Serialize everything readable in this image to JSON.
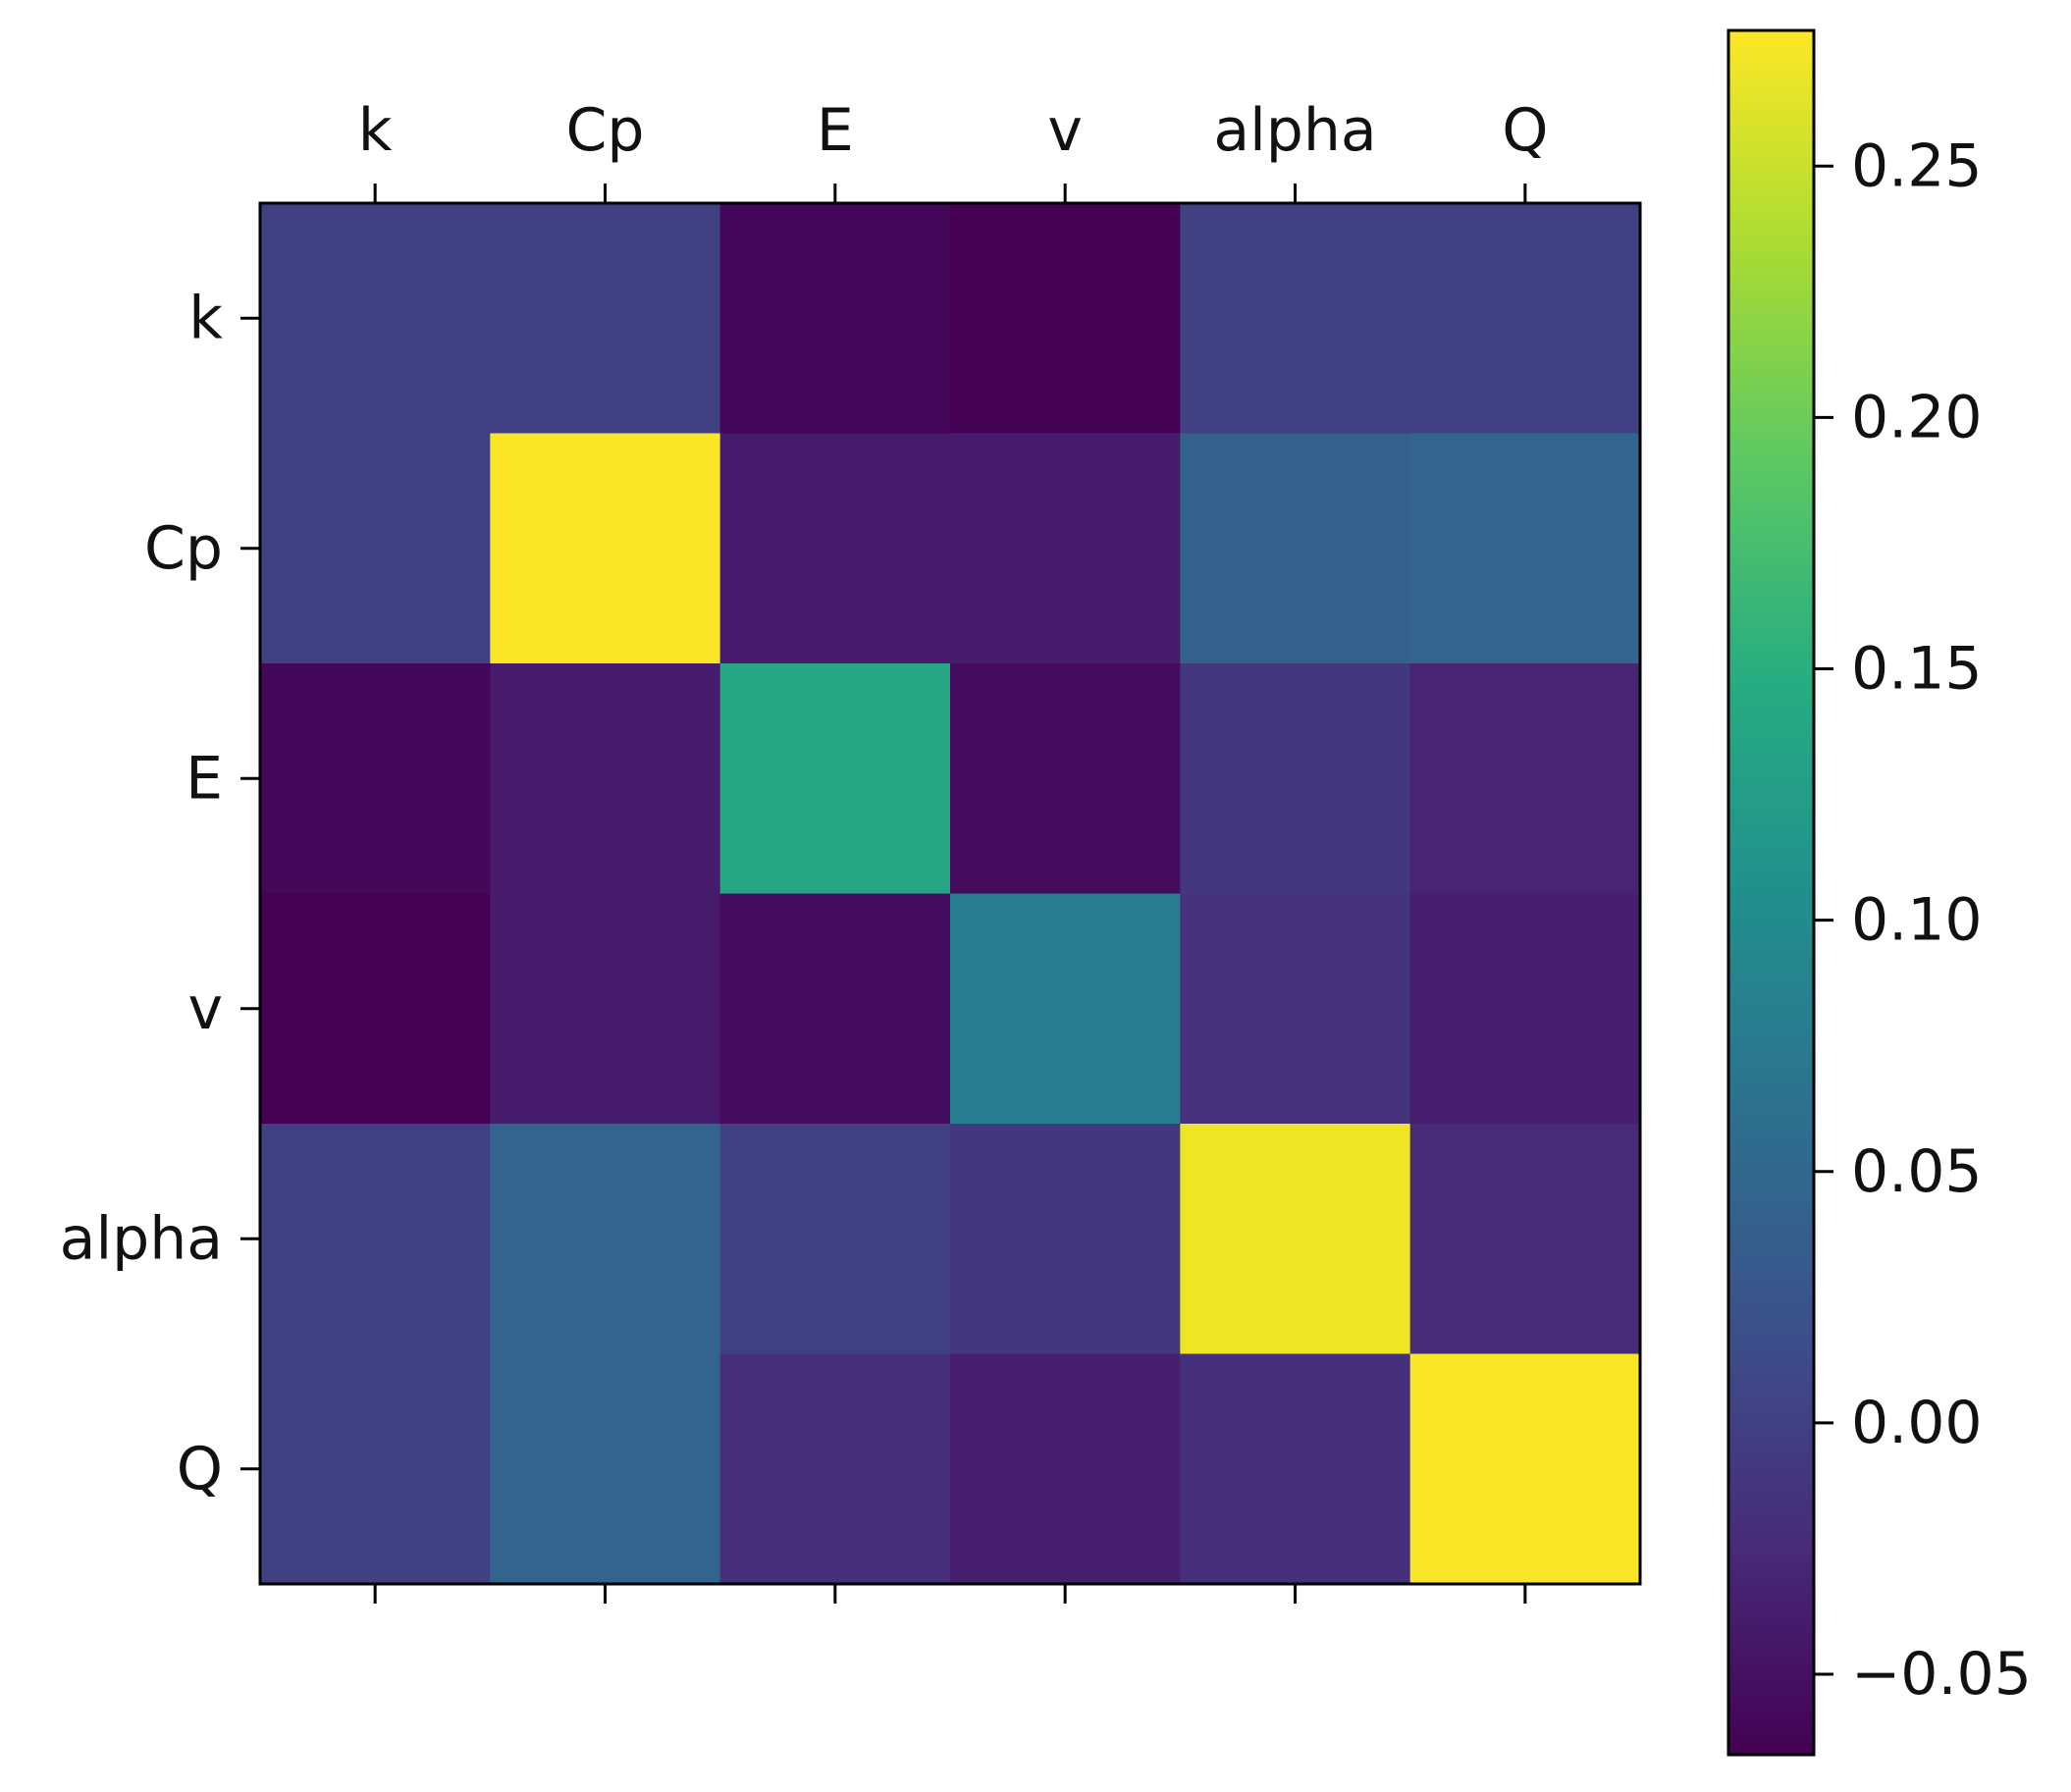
{
  "chart_data": {
    "type": "heatmap",
    "title": "",
    "xlabel": "",
    "ylabel": "",
    "x_labels": [
      "k",
      "Cp",
      "E",
      "v",
      "alpha",
      "Q"
    ],
    "y_labels": [
      "k",
      "Cp",
      "E",
      "v",
      "alpha",
      "Q"
    ],
    "matrix": [
      [
        0.0,
        0.0,
        -0.06,
        -0.066,
        0.0,
        0.0
      ],
      [
        0.0,
        0.275,
        -0.04,
        -0.04,
        0.04,
        0.045
      ],
      [
        -0.06,
        -0.04,
        0.14,
        -0.055,
        -0.01,
        -0.03
      ],
      [
        -0.066,
        -0.04,
        -0.055,
        0.08,
        -0.015,
        -0.035
      ],
      [
        0.0,
        0.045,
        0.0,
        -0.01,
        0.27,
        -0.025
      ],
      [
        0.0,
        0.045,
        -0.02,
        -0.035,
        -0.02,
        0.275
      ]
    ],
    "colorbar": {
      "colormap": "viridis",
      "vmin": -0.066,
      "vmax": 0.277,
      "ticks": [
        -0.05,
        0.0,
        0.05,
        0.1,
        0.15,
        0.2,
        0.25
      ],
      "tick_labels": [
        "−0.05",
        "0.00",
        "0.05",
        "0.10",
        "0.15",
        "0.20",
        "0.25"
      ]
    },
    "x_tick_position": "top and bottom (labels on top)",
    "grid": false,
    "legend": "colorbar at right"
  }
}
